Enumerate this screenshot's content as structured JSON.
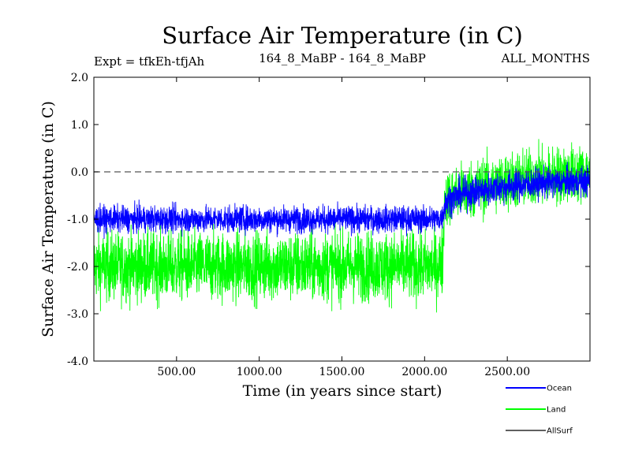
{
  "chart_data": {
    "type": "line",
    "title": "Surface Air Temperature (in C)",
    "subtitle_left": "Expt = tfkEh-tfjAh",
    "subtitle_center": "164_8_MaBP - 164_8_MaBP",
    "subtitle_right": "ALL_MONTHS",
    "xlabel": "Time (in years since start)",
    "ylabel": "Surface Air Temperature (in C)",
    "xlim": [
      0,
      3000
    ],
    "ylim": [
      -4.0,
      2.0
    ],
    "x_ticks": [
      500,
      1000,
      1500,
      2000,
      2500
    ],
    "x_tick_labels": [
      "500.00",
      "1000.00",
      "1500.00",
      "2000.00",
      "2500.00"
    ],
    "y_ticks": [
      2.0,
      1.0,
      0.0,
      -1.0,
      -2.0,
      -3.0,
      -4.0
    ],
    "y_tick_labels": [
      "2.0",
      "1.0",
      "0.0",
      "-1.0",
      "-2.0",
      "-3.0",
      "-4.0"
    ],
    "reference_line": {
      "y": 0.0,
      "style": "dashed"
    },
    "grid": false,
    "legend_position": "bottom-right, outside plot",
    "series": [
      {
        "name": "Ocean",
        "color": "#0000ff",
        "x": [
          0,
          250,
          500,
          1000,
          1500,
          2000,
          2080,
          2110,
          2120,
          2140,
          2200,
          2300,
          2500,
          2700,
          2900,
          3000
        ],
        "mean": [
          -1.0,
          -1.0,
          -1.0,
          -1.0,
          -1.0,
          -1.0,
          -1.0,
          -0.95,
          -0.7,
          -0.6,
          -0.5,
          -0.42,
          -0.3,
          -0.24,
          -0.2,
          -0.2
        ],
        "spread": [
          0.25,
          0.25,
          0.25,
          0.25,
          0.25,
          0.25,
          0.25,
          0.25,
          0.3,
          0.3,
          0.3,
          0.3,
          0.3,
          0.28,
          0.28,
          0.28
        ]
      },
      {
        "name": "Land",
        "color": "#00ff00",
        "x": [
          0,
          250,
          500,
          1000,
          1500,
          2000,
          2080,
          2110,
          2120,
          2140,
          2200,
          2300,
          2500,
          2700,
          2900,
          3000
        ],
        "mean": [
          -2.0,
          -2.0,
          -2.0,
          -2.0,
          -2.0,
          -2.0,
          -2.0,
          -1.9,
          -0.6,
          -0.55,
          -0.45,
          -0.35,
          -0.2,
          -0.1,
          -0.05,
          -0.05
        ],
        "spread": [
          0.65,
          0.65,
          0.65,
          0.65,
          0.65,
          0.65,
          0.65,
          0.65,
          0.5,
          0.5,
          0.55,
          0.55,
          0.55,
          0.55,
          0.55,
          0.55
        ]
      },
      {
        "name": "AllSurf",
        "color": "#000000",
        "x": [],
        "mean": [],
        "spread": []
      }
    ]
  }
}
